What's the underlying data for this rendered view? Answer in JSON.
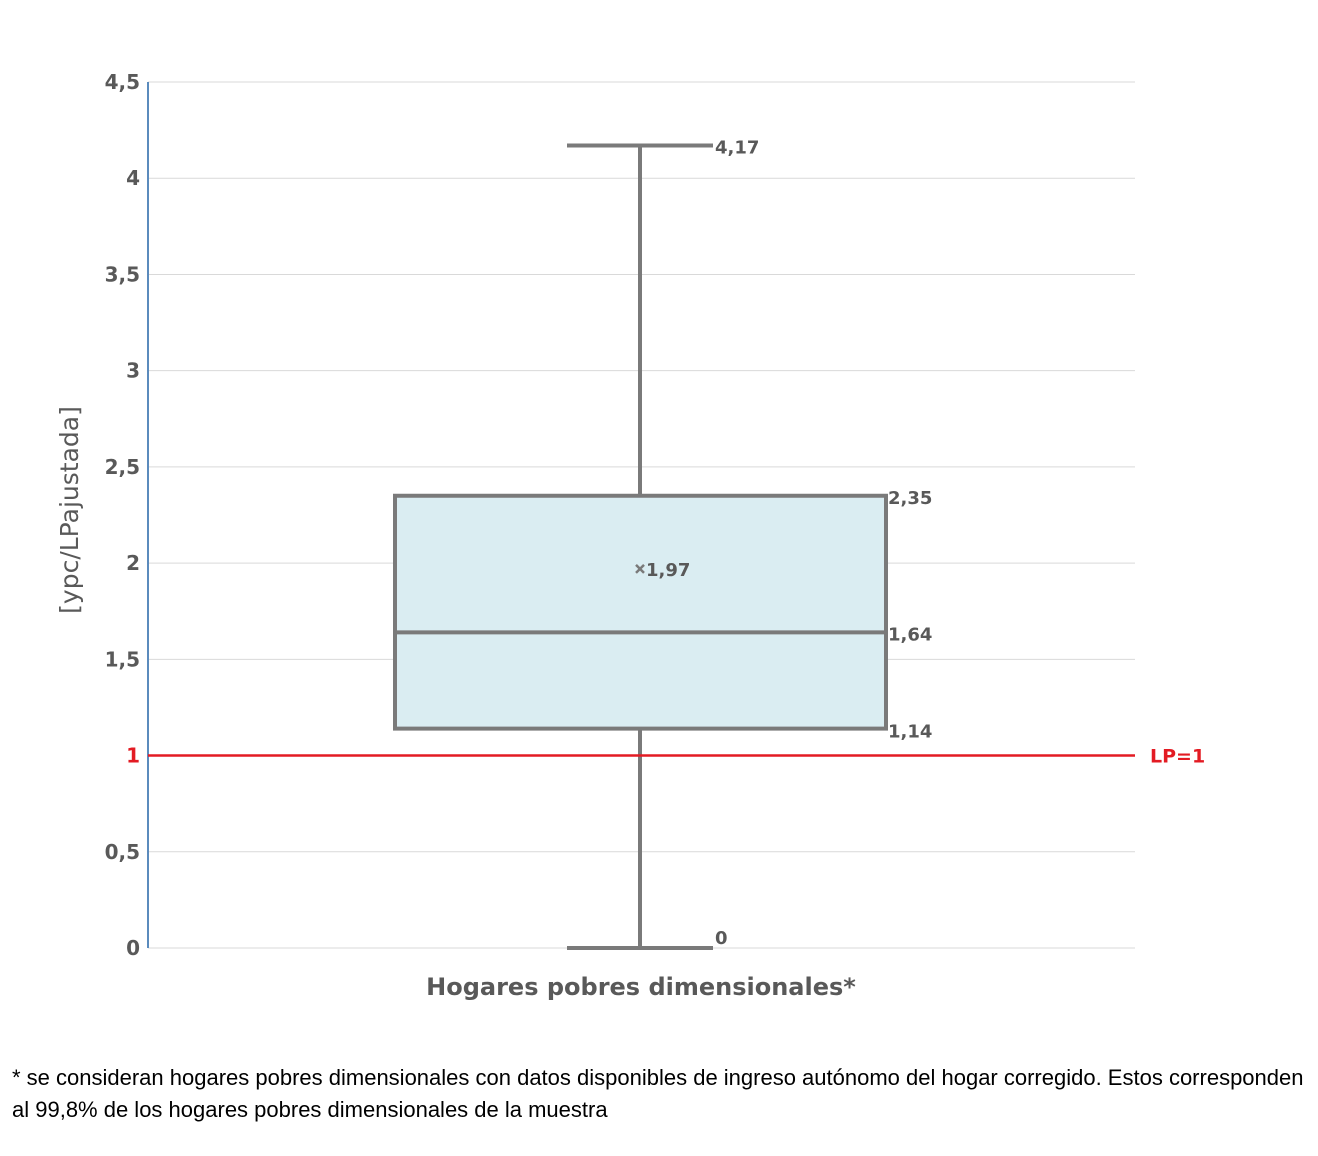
{
  "chart_data": {
    "type": "box",
    "categories": [
      "Hogares pobres dimensionales*"
    ],
    "xlabel": "Hogares pobres dimensionales*",
    "ylabel": "[ypc/LPajustada]",
    "ylim": [
      0,
      4.5
    ],
    "y_ticks": [
      {
        "value": 0,
        "label": "0"
      },
      {
        "value": 0.5,
        "label": "0,5"
      },
      {
        "value": 1,
        "label": "1"
      },
      {
        "value": 1.5,
        "label": "1,5"
      },
      {
        "value": 2,
        "label": "2"
      },
      {
        "value": 2.5,
        "label": "2,5"
      },
      {
        "value": 3,
        "label": "3"
      },
      {
        "value": 3.5,
        "label": "3,5"
      },
      {
        "value": 4,
        "label": "4"
      },
      {
        "value": 4.5,
        "label": "4,5"
      }
    ],
    "grid": true,
    "box": {
      "min": 0,
      "q1": 1.14,
      "median": 1.64,
      "q3": 2.35,
      "max": 4.17,
      "mean": 1.97
    },
    "data_labels": {
      "min": "0",
      "q1": "1,14",
      "median": "1,64",
      "q3": "2,35",
      "max": "4,17",
      "mean": "1,97"
    },
    "reference_line": {
      "value": 1,
      "label": "LP=1",
      "color": "#e31b23"
    },
    "colors": {
      "box_fill": "#daedf2",
      "box_stroke": "#7a7a7a",
      "axis": "#5b8bbd",
      "grid": "#d9d9d9",
      "text": "#595959"
    }
  },
  "footnote": "* se consideran hogares pobres dimensionales con datos disponibles de ingreso autónomo del hogar corregido. Estos corresponden al 99,8% de los hogares pobres dimensionales de la muestra"
}
